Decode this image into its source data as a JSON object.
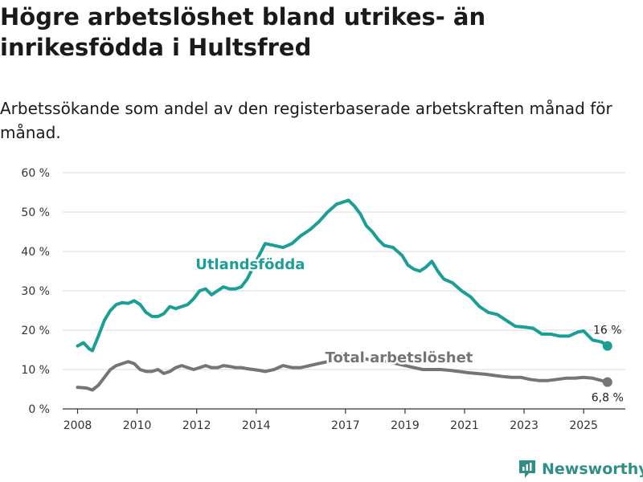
{
  "title": "Högre arbetslöshet bland utrikes- än inrikesfödda i Hultsfred",
  "subtitle": "Arbetssökande som andel av den registerbaserade arbetskraften månad för månad.",
  "brand": "Newsworthy",
  "colors": {
    "foreign": "#1a9e96",
    "total": "#757575",
    "grid": "#d9d9d9",
    "axis": "#333333",
    "brand": "#2f8f86"
  },
  "chart_data": {
    "type": "line",
    "title": "Högre arbetslöshet bland utrikes- än inrikesfödda i Hultsfred",
    "xlabel": "",
    "ylabel": "",
    "ylim": [
      0,
      60
    ],
    "xlim": [
      2007.5,
      2026.4
    ],
    "grid": true,
    "y_ticks": [
      0,
      10,
      20,
      30,
      40,
      50,
      60
    ],
    "y_tick_labels": [
      "0 %",
      "10 %",
      "20 %",
      "30 %",
      "40 %",
      "50 %",
      "60 %"
    ],
    "x_ticks": [
      2008,
      2010,
      2012,
      2014,
      2017,
      2019,
      2021,
      2023,
      2025
    ],
    "x_tick_labels": [
      "2008",
      "2010",
      "2012",
      "2014",
      "2017",
      "2019",
      "2021",
      "2023",
      "2025"
    ],
    "series": [
      {
        "name": "Utlandsfödda",
        "label": "Utlandsfödda",
        "end_label": "16 %",
        "x": [
          2008.0,
          2008.2,
          2008.4,
          2008.5,
          2008.7,
          2008.9,
          2009.1,
          2009.3,
          2009.5,
          2009.7,
          2009.9,
          2010.1,
          2010.3,
          2010.5,
          2010.7,
          2010.9,
          2011.1,
          2011.3,
          2011.5,
          2011.7,
          2011.9,
          2012.1,
          2012.3,
          2012.5,
          2012.7,
          2012.9,
          2013.1,
          2013.3,
          2013.5,
          2013.7,
          2013.9,
          2014.1,
          2014.3,
          2014.6,
          2014.9,
          2015.2,
          2015.5,
          2015.8,
          2016.1,
          2016.4,
          2016.7,
          2016.9,
          2017.1,
          2017.3,
          2017.5,
          2017.7,
          2017.9,
          2018.1,
          2018.3,
          2018.6,
          2018.9,
          2019.1,
          2019.3,
          2019.5,
          2019.7,
          2019.9,
          2020.1,
          2020.3,
          2020.6,
          2020.9,
          2021.2,
          2021.5,
          2021.8,
          2022.1,
          2022.4,
          2022.7,
          2023.0,
          2023.3,
          2023.6,
          2023.9,
          2024.2,
          2024.5,
          2024.8,
          2025.0,
          2025.3,
          2025.6,
          2025.8
        ],
        "values": [
          16,
          16.8,
          15.2,
          14.8,
          18.5,
          22.5,
          25,
          26.5,
          27,
          26.8,
          27.5,
          26.5,
          24.5,
          23.5,
          23.5,
          24.2,
          26,
          25.5,
          26,
          26.5,
          28,
          30,
          30.5,
          29,
          30,
          31,
          30.5,
          30.5,
          31,
          33,
          36,
          39,
          42,
          41.5,
          41,
          42,
          44,
          45.5,
          47.5,
          50,
          52,
          52.5,
          53,
          51.5,
          49.5,
          46.5,
          45,
          43,
          41.5,
          41,
          39,
          36.5,
          35.5,
          35,
          36,
          37.5,
          35,
          33,
          32,
          30,
          28.5,
          26,
          24.5,
          24,
          22.5,
          21,
          20.8,
          20.5,
          19,
          19,
          18.5,
          18.5,
          19.5,
          19.8,
          17.5,
          17,
          16
        ]
      },
      {
        "name": "Total arbetslöshet",
        "label": "Total arbetslöshet",
        "end_label": "6,8 %",
        "x": [
          2008.0,
          2008.3,
          2008.5,
          2008.7,
          2008.9,
          2009.1,
          2009.3,
          2009.5,
          2009.7,
          2009.9,
          2010.1,
          2010.3,
          2010.5,
          2010.7,
          2010.9,
          2011.1,
          2011.3,
          2011.5,
          2011.7,
          2011.9,
          2012.1,
          2012.3,
          2012.5,
          2012.7,
          2012.9,
          2013.1,
          2013.3,
          2013.5,
          2013.7,
          2013.9,
          2014.1,
          2014.3,
          2014.6,
          2014.9,
          2015.2,
          2015.5,
          2015.8,
          2016.1,
          2016.4,
          2016.7,
          2016.9,
          2017.1,
          2017.3,
          2017.5,
          2017.8,
          2018.1,
          2018.4,
          2018.7,
          2019.0,
          2019.3,
          2019.6,
          2019.9,
          2020.2,
          2020.5,
          2020.8,
          2021.1,
          2021.4,
          2021.7,
          2022.0,
          2022.3,
          2022.6,
          2022.9,
          2023.2,
          2023.5,
          2023.8,
          2024.1,
          2024.4,
          2024.7,
          2025.0,
          2025.3,
          2025.6,
          2025.8
        ],
        "values": [
          5.5,
          5.3,
          4.8,
          6,
          8,
          10,
          11,
          11.5,
          12,
          11.5,
          10,
          9.5,
          9.5,
          10,
          9,
          9.5,
          10.5,
          11,
          10.5,
          10,
          10.5,
          11,
          10.5,
          10.5,
          11,
          10.8,
          10.5,
          10.5,
          10.2,
          10,
          9.8,
          9.5,
          10,
          11,
          10.5,
          10.5,
          11,
          11.5,
          12,
          13,
          14,
          14,
          13.5,
          13,
          12.5,
          12.5,
          12,
          11.5,
          11,
          10.5,
          10,
          10,
          10,
          9.8,
          9.5,
          9.2,
          9,
          8.8,
          8.5,
          8.2,
          8,
          8,
          7.5,
          7.2,
          7.2,
          7.5,
          7.8,
          7.8,
          8,
          7.8,
          7.2,
          6.8
        ]
      }
    ]
  }
}
